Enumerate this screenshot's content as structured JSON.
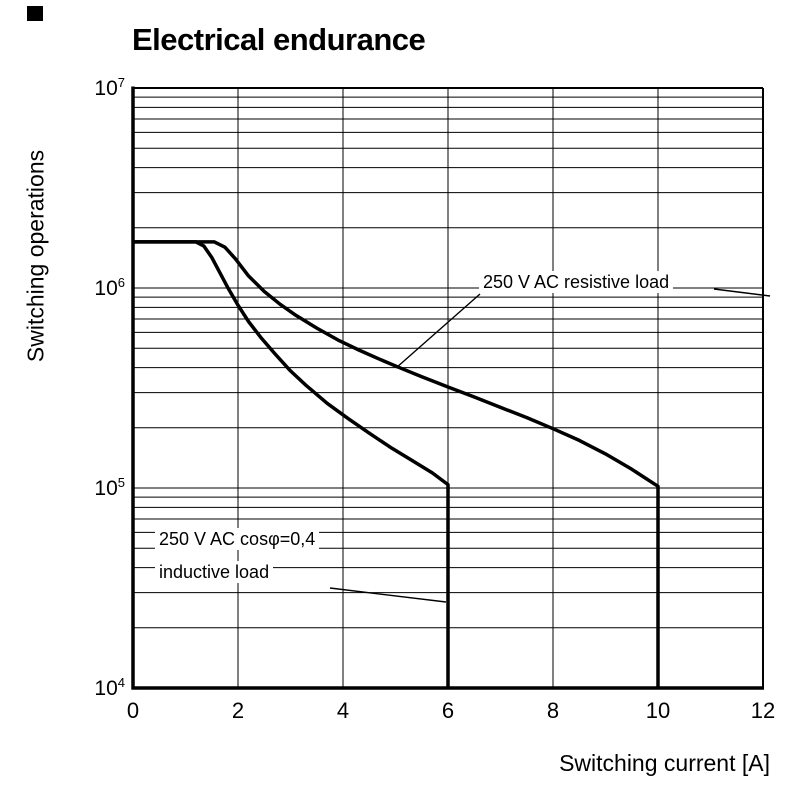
{
  "chart_data": {
    "type": "line",
    "title": "Electrical endurance",
    "xlabel": "Switching current [A]",
    "ylabel": "Switching operations",
    "line_color": "#000000",
    "grid_color": "#000000",
    "background": "#ffffff",
    "grid": true,
    "legend_position": "annotations-on-plot",
    "x_axis": {
      "min": 0,
      "max": 12,
      "ticks": [
        0,
        2,
        4,
        6,
        8,
        10,
        12
      ],
      "gridlines": [
        2,
        4,
        6,
        8,
        10
      ]
    },
    "y_axis": {
      "scale": "log",
      "min": 10000,
      "max": 10000000,
      "ticks": [
        {
          "base": "10",
          "exp": "7",
          "value": 10000000
        },
        {
          "base": "10",
          "exp": "6",
          "value": 1000000
        },
        {
          "base": "10",
          "exp": "5",
          "value": 100000
        },
        {
          "base": "10",
          "exp": "4",
          "value": 10000
        }
      ]
    },
    "series": [
      {
        "id": "resistive",
        "name": "250 V AC resistive load",
        "points": [
          [
            0,
            1700000
          ],
          [
            1.55,
            1700000
          ],
          [
            1.75,
            1600000
          ],
          [
            1.95,
            1400000
          ],
          [
            2.2,
            1150000
          ],
          [
            2.5,
            960000
          ],
          [
            2.8,
            830000
          ],
          [
            3.1,
            730000
          ],
          [
            3.5,
            630000
          ],
          [
            3.9,
            550000
          ],
          [
            4.3,
            490000
          ],
          [
            4.7,
            440000
          ],
          [
            5.1,
            397000
          ],
          [
            5.5,
            360000
          ],
          [
            6.0,
            320000
          ],
          [
            6.5,
            285000
          ],
          [
            7.0,
            253000
          ],
          [
            7.5,
            225000
          ],
          [
            8.0,
            198000
          ],
          [
            8.5,
            173000
          ],
          [
            9.0,
            148000
          ],
          [
            9.5,
            124000
          ],
          [
            10.0,
            102000
          ],
          [
            10.0,
            10000
          ]
        ]
      },
      {
        "id": "inductive",
        "name": "250 V AC cosφ=0,4 inductive load",
        "points": [
          [
            0,
            1700000
          ],
          [
            1.2,
            1700000
          ],
          [
            1.35,
            1620000
          ],
          [
            1.5,
            1420000
          ],
          [
            1.65,
            1200000
          ],
          [
            1.8,
            1010000
          ],
          [
            2.0,
            820000
          ],
          [
            2.2,
            680000
          ],
          [
            2.45,
            560000
          ],
          [
            2.7,
            470000
          ],
          [
            3.0,
            385000
          ],
          [
            3.3,
            325000
          ],
          [
            3.7,
            265000
          ],
          [
            4.1,
            222000
          ],
          [
            4.5,
            188000
          ],
          [
            4.9,
            160000
          ],
          [
            5.3,
            138000
          ],
          [
            5.7,
            119000
          ],
          [
            6.0,
            104000
          ],
          [
            6.0,
            10000
          ]
        ]
      }
    ],
    "annotations": [
      {
        "text": "250 V AC resistive load",
        "leaders": [
          [
            480,
            294,
            396,
            368
          ],
          [
            714,
            289,
            770,
            296
          ]
        ]
      },
      {
        "text": "250 V AC cosφ=0,4",
        "leaders": []
      },
      {
        "text": "inductive load",
        "leaders": [
          [
            330,
            588,
            446,
            602
          ]
        ]
      }
    ]
  }
}
